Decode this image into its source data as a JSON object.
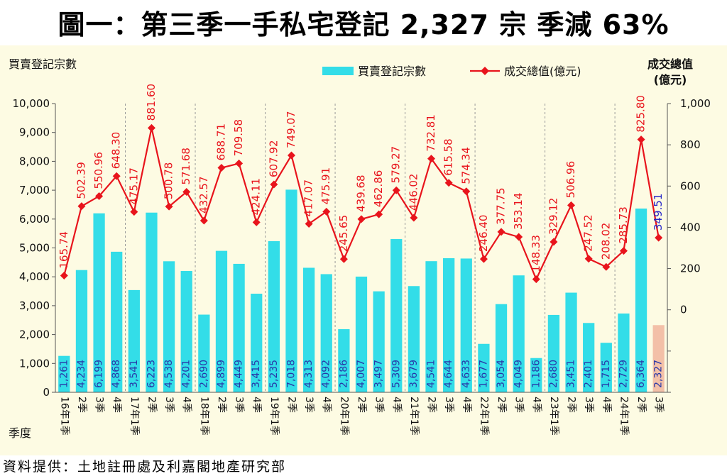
{
  "title": "圖一：第三季一手私宅登記 2,327 宗  季減 63%",
  "source": "資料提供：土地註冊處及利嘉閣地產研究部",
  "chart_data": {
    "type": "bar",
    "ylabel_left": "買賣登記宗數",
    "ylabel_right": [
      "成交總值",
      "(億元)"
    ],
    "xlabel": "季度",
    "ylim_left": [
      0,
      10000
    ],
    "ylim_right": [
      -400,
      1000
    ],
    "yticks_left": [
      "0",
      "1,000",
      "2,000",
      "3,000",
      "4,000",
      "5,000",
      "6,000",
      "7,000",
      "8,000",
      "9,000",
      "10,000"
    ],
    "yticks_right": [
      "0",
      "200",
      "400",
      "600",
      "800",
      "1,000"
    ],
    "colors": {
      "bar": "#33dde8",
      "bar_highlight": "#f3c0a8",
      "line": "#e8141c",
      "line_label": "#e8141c",
      "highlight_label": "#2828c8",
      "bar_label": "#2838a8",
      "background": "#fdfbe3"
    },
    "categories": [
      "16年1季",
      "2季",
      "3季",
      "4季",
      "17年1季",
      "2季",
      "3季",
      "4季",
      "18年1季",
      "2季",
      "3季",
      "4季",
      "19年1季",
      "2季",
      "3季",
      "4季",
      "20年1季",
      "2季",
      "3季",
      "4季",
      "21年1季",
      "2季",
      "3季",
      "4季",
      "22年1季",
      "2季",
      "3季",
      "4季",
      "23年1季",
      "2季",
      "3季",
      "4季",
      "24年1季",
      "2季",
      "3季"
    ],
    "series": [
      {
        "name": "買賣登記宗數",
        "kind": "bar",
        "values": [
          1261,
          4234,
          6199,
          4868,
          3541,
          6223,
          4538,
          4201,
          2690,
          4899,
          4449,
          3415,
          5235,
          7018,
          4313,
          4092,
          2186,
          4007,
          3497,
          5309,
          3679,
          4541,
          4644,
          4633,
          1677,
          3054,
          4049,
          1186,
          2680,
          3451,
          2401,
          1715,
          2729,
          6364,
          2327
        ],
        "labels": [
          "1,261",
          "4,234",
          "6,199",
          "4,868",
          "3,541",
          "6,223",
          "4,538",
          "4,201",
          "2,690",
          "4,899",
          "4,449",
          "3,415",
          "5,235",
          "7,018",
          "4,313",
          "4,092",
          "2,186",
          "4,007",
          "3,497",
          "5,309",
          "3,679",
          "4,541",
          "4,644",
          "4,633",
          "1,677",
          "3,054",
          "4,049",
          "1,186",
          "2,680",
          "3,451",
          "2,401",
          "1,715",
          "2,729",
          "6,364",
          "2,327"
        ]
      },
      {
        "name": "成交總值(億元)",
        "kind": "line",
        "values": [
          165.74,
          502.39,
          550.96,
          648.3,
          475.17,
          881.6,
          500.78,
          571.68,
          432.57,
          688.71,
          709.58,
          424.11,
          607.92,
          749.07,
          417.07,
          475.91,
          245.65,
          439.68,
          462.86,
          579.27,
          446.02,
          732.81,
          615.58,
          574.34,
          246.4,
          377.75,
          353.14,
          148.33,
          329.12,
          506.96,
          247.52,
          208.02,
          285.73,
          825.8,
          349.51
        ],
        "labels": [
          "165.74",
          "502.39",
          "550.96",
          "648.30",
          "475.17",
          "881.60",
          "500.78",
          "571.68",
          "432.57",
          "688.71",
          "709.58",
          "424.11",
          "607.92",
          "749.07",
          "417.07",
          "475.91",
          "245.65",
          "439.68",
          "462.86",
          "579.27",
          "446.02",
          "732.81",
          "615.58",
          "574.34",
          "246.40",
          "377.75",
          "353.14",
          "148.33",
          "329.12",
          "506.96",
          "247.52",
          "208.02",
          "285.73",
          "825.80",
          "349.51"
        ]
      }
    ],
    "legend": "top-center"
  }
}
